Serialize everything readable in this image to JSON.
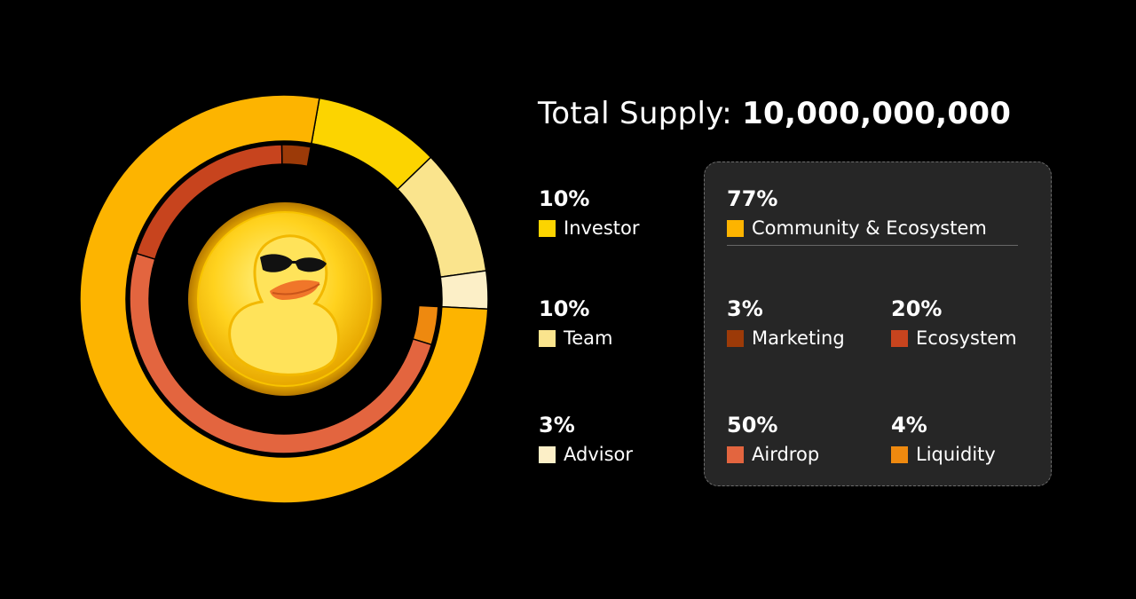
{
  "title": {
    "label": "Total Supply:",
    "value": "10,000,000,000"
  },
  "chart_data": [
    {
      "type": "pie",
      "ring": "outer",
      "categories": [
        "Investor",
        "Team",
        "Advisor",
        "Community & Ecosystem"
      ],
      "values": [
        10,
        10,
        3,
        77
      ],
      "colors": [
        "#FCD400",
        "#FAE48D",
        "#FCEFC7",
        "#FDB400"
      ],
      "start": "top, clockwise"
    },
    {
      "type": "pie",
      "ring": "inner",
      "categories": [
        "Marketing",
        "Ecosystem",
        "Airdrop",
        "Liquidity"
      ],
      "values": [
        3,
        20,
        50,
        4
      ],
      "colors": [
        "#9C3A08",
        "#C7441E",
        "#E3653F",
        "#EE890F"
      ]
    }
  ],
  "legend": {
    "investor": {
      "pct": "10%",
      "label": "Investor",
      "color": "#FCD400"
    },
    "team": {
      "pct": "10%",
      "label": "Team",
      "color": "#FAE48D"
    },
    "advisor": {
      "pct": "3%",
      "label": "Advisor",
      "color": "#FCEFC7"
    },
    "community": {
      "pct": "77%",
      "label": "Community & Ecosystem",
      "color": "#FDB400"
    },
    "marketing": {
      "pct": "3%",
      "label": "Marketing",
      "color": "#9C3A08"
    },
    "ecosystem": {
      "pct": "20%",
      "label": "Ecosystem",
      "color": "#C7441E"
    },
    "airdrop": {
      "pct": "50%",
      "label": "Airdrop",
      "color": "#E3653F"
    },
    "liquidity": {
      "pct": "4%",
      "label": "Liquidity",
      "color": "#EE890F"
    }
  }
}
